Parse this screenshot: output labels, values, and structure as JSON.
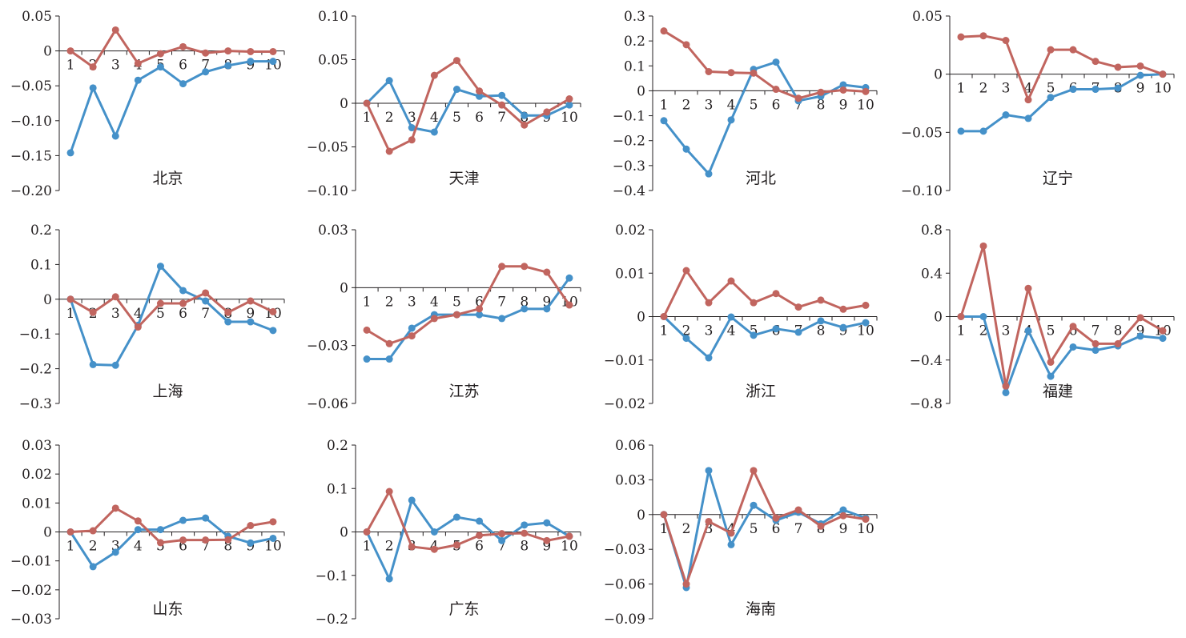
{
  "colors": {
    "series1": "#4591c9",
    "series2": "#c1655f",
    "axis": "#231f20"
  },
  "chart_data": [
    {
      "type": "line",
      "title": "北京",
      "x": [
        1,
        2,
        3,
        4,
        5,
        6,
        7,
        8,
        9,
        10
      ],
      "ylim": [
        -0.2,
        0.05
      ],
      "yticks": [
        0.05,
        0,
        -0.05,
        -0.1,
        -0.15,
        -0.2
      ],
      "yticklabels": [
        "0.05",
        "0",
        "−0.05",
        "−0.10",
        "−0.15",
        "−0.20"
      ],
      "series": [
        {
          "values": [
            -0.146,
            -0.053,
            -0.122,
            -0.042,
            -0.023,
            -0.047,
            -0.03,
            -0.021,
            -0.015,
            -0.015
          ]
        },
        {
          "values": [
            0,
            -0.023,
            0.03,
            -0.018,
            -0.004,
            0.006,
            -0.003,
            0.0,
            -0.001,
            -0.001
          ]
        }
      ]
    },
    {
      "type": "line",
      "title": "天津",
      "x": [
        1,
        2,
        3,
        4,
        5,
        6,
        7,
        8,
        9,
        10
      ],
      "ylim": [
        -0.1,
        0.1
      ],
      "yticks": [
        0.1,
        0.05,
        0,
        -0.05,
        -0.1
      ],
      "yticklabels": [
        "0.10",
        "0.05",
        "0",
        "−0.05",
        "−0.10"
      ],
      "series": [
        {
          "values": [
            0,
            0.026,
            -0.028,
            -0.033,
            0.016,
            0.008,
            0.009,
            -0.014,
            -0.014,
            -0.002
          ]
        },
        {
          "values": [
            0,
            -0.055,
            -0.042,
            0.032,
            0.049,
            0.014,
            -0.002,
            -0.025,
            -0.01,
            0.005
          ]
        }
      ]
    },
    {
      "type": "line",
      "title": "河北",
      "x": [
        1,
        2,
        3,
        4,
        5,
        6,
        7,
        8,
        9,
        10
      ],
      "ylim": [
        -0.4,
        0.3
      ],
      "yticks": [
        0.3,
        0.2,
        0.1,
        0,
        -0.1,
        -0.2,
        -0.3,
        -0.4
      ],
      "yticklabels": [
        "0.3",
        "0.2",
        "0.1",
        "0",
        "−0.1",
        "−0.2",
        "−0.3",
        "−0.4"
      ],
      "series": [
        {
          "values": [
            -0.12,
            -0.234,
            -0.333,
            -0.117,
            0.086,
            0.115,
            -0.04,
            -0.022,
            0.024,
            0.013
          ]
        },
        {
          "values": [
            0.24,
            0.185,
            0.077,
            0.073,
            0.071,
            0.006,
            -0.03,
            -0.006,
            0.003,
            -0.003
          ]
        }
      ]
    },
    {
      "type": "line",
      "title": "辽宁",
      "x": [
        1,
        2,
        3,
        4,
        5,
        6,
        7,
        8,
        9,
        10
      ],
      "ylim": [
        -0.1,
        0.05
      ],
      "yticks": [
        0.05,
        0,
        -0.05,
        -0.1
      ],
      "yticklabels": [
        "0.05",
        "0",
        "−0.05",
        "−0.10"
      ],
      "series": [
        {
          "values": [
            -0.049,
            -0.049,
            -0.035,
            -0.038,
            -0.02,
            -0.013,
            -0.013,
            -0.012,
            -0.001,
            0
          ]
        },
        {
          "values": [
            0.032,
            0.033,
            0.029,
            -0.022,
            0.021,
            0.021,
            0.011,
            0.006,
            0.007,
            0
          ]
        }
      ]
    },
    {
      "type": "line",
      "title": "上海",
      "x": [
        1,
        2,
        3,
        4,
        5,
        6,
        7,
        8,
        9,
        10
      ],
      "ylim": [
        -0.3,
        0.2
      ],
      "yticks": [
        0.2,
        0.1,
        0,
        -0.1,
        -0.2,
        -0.3
      ],
      "yticklabels": [
        "0.2",
        "0.1",
        "0",
        "−0.1",
        "−0.2",
        "−0.3"
      ],
      "series": [
        {
          "values": [
            0,
            -0.188,
            -0.19,
            -0.075,
            0.095,
            0.025,
            -0.005,
            -0.065,
            -0.065,
            -0.09
          ]
        },
        {
          "values": [
            0,
            -0.038,
            0.007,
            -0.08,
            -0.012,
            -0.012,
            0.018,
            -0.038,
            -0.005,
            -0.036
          ]
        }
      ]
    },
    {
      "type": "line",
      "title": "江苏",
      "x": [
        1,
        2,
        3,
        4,
        5,
        6,
        7,
        8,
        9,
        10
      ],
      "ylim": [
        -0.06,
        0.03
      ],
      "yticks": [
        0.03,
        0,
        -0.03,
        -0.06
      ],
      "yticklabels": [
        "0.03",
        "0",
        "−0.03",
        "−0.06"
      ],
      "series": [
        {
          "values": [
            -0.037,
            -0.037,
            -0.021,
            -0.014,
            -0.014,
            -0.014,
            -0.016,
            -0.011,
            -0.011,
            0.005
          ]
        },
        {
          "values": [
            -0.022,
            -0.029,
            -0.025,
            -0.016,
            -0.014,
            -0.011,
            0.011,
            0.011,
            0.008,
            -0.009
          ]
        }
      ]
    },
    {
      "type": "line",
      "title": "浙江",
      "x": [
        1,
        2,
        3,
        4,
        5,
        6,
        7,
        8,
        9,
        10
      ],
      "ylim": [
        -0.02,
        0.02
      ],
      "yticks": [
        0.02,
        0.01,
        0,
        -0.01,
        -0.02
      ],
      "yticklabels": [
        "0.02",
        "0.01",
        "0",
        "−0.01",
        "−0.02"
      ],
      "series": [
        {
          "values": [
            0,
            -0.005,
            -0.0095,
            -0.0001,
            -0.0043,
            -0.0028,
            -0.0036,
            -0.001,
            -0.0025,
            -0.0014
          ]
        },
        {
          "values": [
            0,
            0.0106,
            0.0032,
            0.0082,
            0.0032,
            0.0053,
            0.0022,
            0.0038,
            0.0017,
            0.0026
          ]
        }
      ]
    },
    {
      "type": "line",
      "title": "福建",
      "x": [
        1,
        2,
        3,
        4,
        5,
        6,
        7,
        8,
        9,
        10
      ],
      "ylim": [
        -0.8,
        0.8
      ],
      "yticks": [
        0.8,
        0.4,
        0,
        -0.4,
        -0.8
      ],
      "yticklabels": [
        "0.8",
        "0.4",
        "0",
        "−0.4",
        "−0.8"
      ],
      "series": [
        {
          "values": [
            0,
            0,
            -0.7,
            -0.13,
            -0.55,
            -0.28,
            -0.31,
            -0.27,
            -0.18,
            -0.2
          ]
        },
        {
          "values": [
            0,
            0.65,
            -0.64,
            0.26,
            -0.42,
            -0.09,
            -0.25,
            -0.25,
            -0.01,
            -0.13
          ]
        }
      ]
    },
    {
      "type": "line",
      "title": "山东",
      "x": [
        1,
        2,
        3,
        4,
        5,
        6,
        7,
        8,
        9,
        10
      ],
      "ylim": [
        -0.03,
        0.03
      ],
      "yticks": [
        0.03,
        0.02,
        0.01,
        0,
        -0.01,
        -0.02,
        -0.03
      ],
      "yticklabels": [
        "0.03",
        "0.02",
        "0.01",
        "0",
        "−0.01",
        "−0.02",
        "−0.03"
      ],
      "series": [
        {
          "values": [
            0,
            -0.012,
            -0.007,
            0.0008,
            0.0008,
            0.004,
            0.0048,
            -0.0015,
            -0.0038,
            -0.0022
          ]
        },
        {
          "values": [
            0,
            0.0004,
            0.0082,
            0.0038,
            -0.0037,
            -0.0028,
            -0.0028,
            -0.0027,
            0.0022,
            0.0035
          ]
        }
      ]
    },
    {
      "type": "line",
      "title": "广东",
      "x": [
        1,
        2,
        3,
        4,
        5,
        6,
        7,
        8,
        9,
        10
      ],
      "ylim": [
        -0.2,
        0.2
      ],
      "yticks": [
        0.2,
        0.1,
        0,
        -0.1,
        -0.2
      ],
      "yticklabels": [
        "0.2",
        "0.1",
        "0",
        "−0.1",
        "−0.2"
      ],
      "series": [
        {
          "values": [
            0,
            -0.108,
            0.073,
            0,
            0.034,
            0.025,
            -0.02,
            0.016,
            0.021,
            -0.01
          ]
        },
        {
          "values": [
            0,
            0.093,
            -0.034,
            -0.04,
            -0.03,
            -0.008,
            -0.004,
            -0.003,
            -0.02,
            -0.01
          ]
        }
      ]
    },
    {
      "type": "line",
      "title": "海南",
      "x": [
        1,
        2,
        3,
        4,
        5,
        6,
        7,
        8,
        9,
        10
      ],
      "ylim": [
        -0.09,
        0.06
      ],
      "yticks": [
        0.06,
        0.03,
        0,
        -0.03,
        -0.06,
        -0.09
      ],
      "yticklabels": [
        "0.06",
        "0.03",
        "0",
        "−0.03",
        "−0.06",
        "−0.09"
      ],
      "series": [
        {
          "values": [
            0,
            -0.063,
            0.038,
            -0.026,
            0.008,
            -0.005,
            0.002,
            -0.008,
            0.004,
            -0.003
          ]
        },
        {
          "values": [
            0,
            -0.06,
            -0.006,
            -0.016,
            0.038,
            -0.003,
            0.004,
            -0.01,
            -0.001,
            -0.004
          ]
        }
      ]
    }
  ]
}
